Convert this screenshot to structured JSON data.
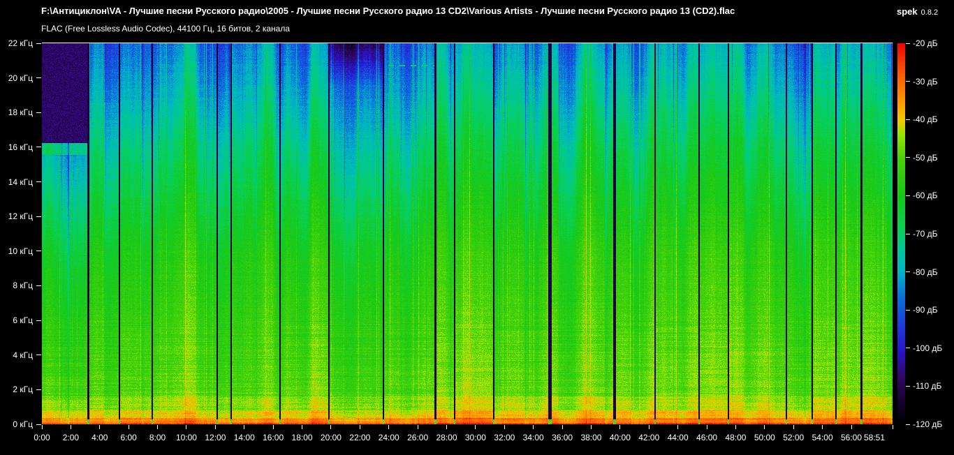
{
  "header": {
    "file_path": "F:\\Антициклон\\VA - Лучшие песни Русского радио\\2005 - Лучшие песни Русского радио 13 CD2\\Various Artists - Лучшие песни Русского радио 13 (CD2).flac",
    "app_name": "spek",
    "app_version": "0.8.2",
    "audio_info": "FLAC (Free Lossless Audio Codec), 44100 Гц, 16 битов, 2 канала"
  },
  "chart_data": {
    "type": "heatmap",
    "subtype": "audio-spectrogram",
    "duration_s": 3531,
    "duration_label": "58:51",
    "x_axis": {
      "unit": "time",
      "ticks": [
        {
          "s": 0,
          "label": "0:00"
        },
        {
          "s": 120,
          "label": "2:00"
        },
        {
          "s": 240,
          "label": "4:00"
        },
        {
          "s": 360,
          "label": "6:00"
        },
        {
          "s": 480,
          "label": "8:00"
        },
        {
          "s": 600,
          "label": "10:00"
        },
        {
          "s": 720,
          "label": "12:00"
        },
        {
          "s": 840,
          "label": "14:00"
        },
        {
          "s": 960,
          "label": "16:00"
        },
        {
          "s": 1080,
          "label": "18:00"
        },
        {
          "s": 1200,
          "label": "20:00"
        },
        {
          "s": 1320,
          "label": "22:00"
        },
        {
          "s": 1440,
          "label": "24:00"
        },
        {
          "s": 1560,
          "label": "26:00"
        },
        {
          "s": 1680,
          "label": "28:00"
        },
        {
          "s": 1800,
          "label": "30:00"
        },
        {
          "s": 1920,
          "label": "32:00"
        },
        {
          "s": 2040,
          "label": "34:00"
        },
        {
          "s": 2160,
          "label": "36:00"
        },
        {
          "s": 2280,
          "label": "38:00"
        },
        {
          "s": 2400,
          "label": "40:00"
        },
        {
          "s": 2520,
          "label": "42:00"
        },
        {
          "s": 2640,
          "label": "44:00"
        },
        {
          "s": 2760,
          "label": "46:00"
        },
        {
          "s": 2880,
          "label": "48:00"
        },
        {
          "s": 3000,
          "label": "50:00"
        },
        {
          "s": 3120,
          "label": "52:00"
        },
        {
          "s": 3240,
          "label": "54:00"
        },
        {
          "s": 3360,
          "label": "56:00"
        },
        {
          "s": 3531,
          "label": "58:51"
        }
      ]
    },
    "y_axis": {
      "unit": "кГц",
      "range_khz": [
        0,
        22
      ],
      "ticks": [
        {
          "khz": 22,
          "label": "22 кГц"
        },
        {
          "khz": 20,
          "label": "20 кГц"
        },
        {
          "khz": 18,
          "label": "18 кГц"
        },
        {
          "khz": 16,
          "label": "16 кГц"
        },
        {
          "khz": 14,
          "label": "14 кГц"
        },
        {
          "khz": 12,
          "label": "12 кГц"
        },
        {
          "khz": 10,
          "label": "10 кГц"
        },
        {
          "khz": 8,
          "label": "8 кГц"
        },
        {
          "khz": 6,
          "label": "6 кГц"
        },
        {
          "khz": 4,
          "label": "4 кГц"
        },
        {
          "khz": 2,
          "label": "2 кГц"
        },
        {
          "khz": 0,
          "label": "0 кГц"
        }
      ]
    },
    "color_axis": {
      "unit": "дБ",
      "range_db": [
        -120,
        -20
      ],
      "ticks": [
        {
          "db": -20,
          "label": "-20 дБ"
        },
        {
          "db": -30,
          "label": "-30 дБ"
        },
        {
          "db": -40,
          "label": "-40 дБ"
        },
        {
          "db": -50,
          "label": "-50 дБ"
        },
        {
          "db": -60,
          "label": "-60 дБ"
        },
        {
          "db": -70,
          "label": "-70 дБ"
        },
        {
          "db": -80,
          "label": "-80 дБ"
        },
        {
          "db": -90,
          "label": "-90 дБ"
        },
        {
          "db": -100,
          "label": "-100 дБ"
        },
        {
          "db": -110,
          "label": "-110 дБ"
        },
        {
          "db": -120,
          "label": "-120 дБ"
        }
      ]
    },
    "palette_stops": [
      [
        0.0,
        "#000000"
      ],
      [
        0.06,
        "#140232"
      ],
      [
        0.12,
        "#32055f"
      ],
      [
        0.19,
        "#2814c8"
      ],
      [
        0.26,
        "#1e3cdc"
      ],
      [
        0.33,
        "#0a6edc"
      ],
      [
        0.4,
        "#00b4c8"
      ],
      [
        0.46,
        "#00c896"
      ],
      [
        0.52,
        "#0ad050"
      ],
      [
        0.6,
        "#16c816"
      ],
      [
        0.7,
        "#46d20a"
      ],
      [
        0.76,
        "#96e600"
      ],
      [
        0.8,
        "#f5c800"
      ],
      [
        0.85,
        "#ff9600"
      ],
      [
        0.92,
        "#ff5a00"
      ],
      [
        1.0,
        "#ef0505"
      ]
    ],
    "background_color": "#000000",
    "text_color": "#ffffff",
    "tracks": [
      {
        "start": 0,
        "end": 188,
        "loud": 0,
        "hf": -14,
        "cutoff": 16.25,
        "edge": true
      },
      {
        "start": 188,
        "end": 319,
        "loud": 1,
        "hf": 0
      },
      {
        "start": 319,
        "end": 455,
        "loud": 3,
        "hf": 1
      },
      {
        "start": 455,
        "end": 725,
        "loud": 2,
        "hf": 0
      },
      {
        "start": 725,
        "end": 783,
        "loud": 0,
        "hf": -2
      },
      {
        "start": 783,
        "end": 986,
        "loud": 1,
        "hf": 3
      },
      {
        "start": 986,
        "end": 1189,
        "loud": 2,
        "hf": -1
      },
      {
        "start": 1189,
        "end": 1415,
        "loud": 0,
        "hf": -4,
        "soft_cutoff": 19.5
      },
      {
        "start": 1415,
        "end": 1629,
        "loud": 1,
        "hf": -1,
        "pilot": true
      },
      {
        "start": 1629,
        "end": 1711,
        "loud": 1,
        "hf": 1
      },
      {
        "start": 1711,
        "end": 1873,
        "loud": 5,
        "hf": 3
      },
      {
        "start": 1873,
        "end": 2102,
        "loud": 1,
        "hf": 0,
        "var": 1.4
      },
      {
        "start": 2102,
        "end": 2371,
        "loud": 1,
        "hf": 1,
        "var": 1.4
      },
      {
        "start": 2371,
        "end": 2542,
        "loud": 2,
        "hf": 1
      },
      {
        "start": 2542,
        "end": 2725,
        "loud": 1,
        "hf": 0
      },
      {
        "start": 2725,
        "end": 2847,
        "loud": 2,
        "hf": 1
      },
      {
        "start": 2847,
        "end": 3088,
        "loud": 2,
        "hf": 2
      },
      {
        "start": 3088,
        "end": 3195,
        "loud": 1,
        "hf": -2
      },
      {
        "start": 3195,
        "end": 3293,
        "loud": 4,
        "hf": 5
      },
      {
        "start": 3293,
        "end": 3398,
        "loud": 1,
        "hf": -1
      },
      {
        "start": 3398,
        "end": 3531,
        "loud": 2,
        "hf": 0
      }
    ],
    "track_boundaries": [
      {
        "s": 188,
        "w": 3
      },
      {
        "s": 319,
        "w": 2
      },
      {
        "s": 455,
        "w": 2
      },
      {
        "s": 725,
        "w": 2
      },
      {
        "s": 783,
        "w": 2
      },
      {
        "s": 986,
        "w": 2
      },
      {
        "s": 1189,
        "w": 2
      },
      {
        "s": 1415,
        "w": 2
      },
      {
        "s": 1629,
        "w": 3
      },
      {
        "s": 1711,
        "w": 2
      },
      {
        "s": 1873,
        "w": 2
      },
      {
        "s": 2102,
        "w": 5
      },
      {
        "s": 2371,
        "w": 4
      },
      {
        "s": 2542,
        "w": 2
      },
      {
        "s": 2725,
        "w": 2
      },
      {
        "s": 2847,
        "w": 2
      },
      {
        "s": 3088,
        "w": 2
      },
      {
        "s": 3195,
        "w": 2
      },
      {
        "s": 3293,
        "w": 2
      },
      {
        "s": 3398,
        "w": 3
      }
    ]
  }
}
